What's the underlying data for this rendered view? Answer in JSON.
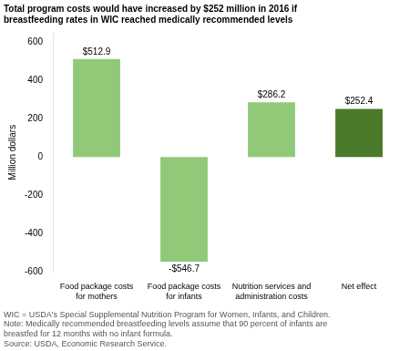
{
  "chart_data": {
    "type": "bar",
    "title": [
      "Total program costs would have increased by $252 million in 2016 if",
      "breastfeeding rates in WIC reached medically recommended levels"
    ],
    "ylabel": "Million dollars",
    "categories": [
      "Food package costs\nfor mothers",
      "Food package costs\nfor infants",
      "Nutrition services and\nadministration costs",
      "Net effect"
    ],
    "values": [
      512.9,
      -546.7,
      286.2,
      252.4
    ],
    "value_labels": [
      "$512.9",
      "-$546.7",
      "$286.2",
      "$252.4"
    ],
    "colors": [
      "#90c978",
      "#90c978",
      "#90c978",
      "#4a7a2a"
    ],
    "data_labels": true,
    "ylim": [
      -600,
      650
    ],
    "yticks": [
      -600,
      -400,
      -200,
      0,
      200,
      400,
      600
    ],
    "grid": false,
    "footnote": "WIC = USDA's Special Supplemental Nutrition Program for Women, Infants, and Children.\nNote: Medically recommended breastfeeding levels assume that 90 percent of infants are\nbreastfed for 12 months with no infant formula.\nSource: USDA, Economic Research Service."
  }
}
